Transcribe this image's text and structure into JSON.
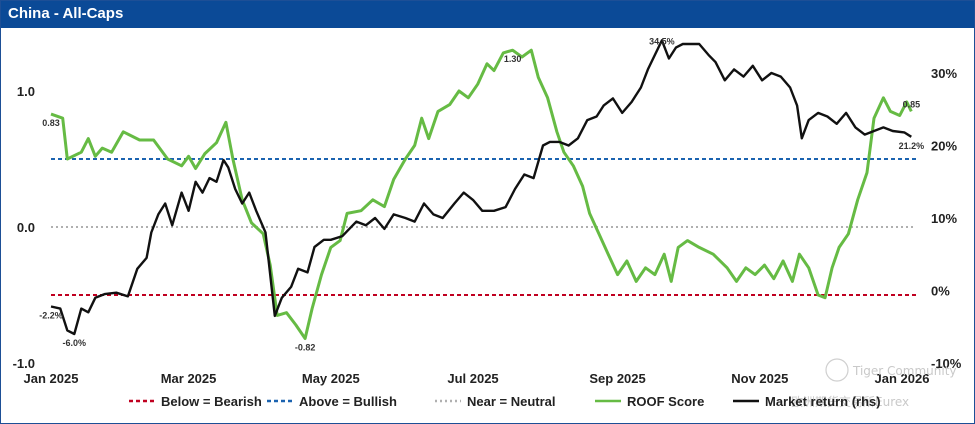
{
  "header": {
    "title": "China - All-Caps"
  },
  "watermark": {
    "brand": "Tiger Community",
    "exchange": "欧洲期货交易所Eurex"
  },
  "chart_data": {
    "type": "line",
    "title": "China - All-Caps",
    "x_range": [
      "2025-01-01",
      "2026-01-07"
    ],
    "x_ticks": [
      {
        "date": "2025-01-01",
        "label": "Jan 2025"
      },
      {
        "date": "2025-03-01",
        "label": "Mar 2025"
      },
      {
        "date": "2025-05-01",
        "label": "May 2025"
      },
      {
        "date": "2025-07-01",
        "label": "Jul 2025"
      },
      {
        "date": "2025-09-01",
        "label": "Sep 2025"
      },
      {
        "date": "2025-11-01",
        "label": "Nov 2025"
      },
      {
        "date": "2026-01-01",
        "label": "Jan 2026"
      }
    ],
    "y_left": {
      "range": [
        -1.0,
        1.0
      ],
      "ticks": [
        {
          "v": 1.0,
          "label": "1.0"
        },
        {
          "v": 0.0,
          "label": "0.0"
        },
        {
          "v": -1.0,
          "label": "-1.0"
        }
      ]
    },
    "y_right": {
      "range": [
        -10,
        30
      ],
      "ticks": [
        {
          "v": 30,
          "label": "30%"
        },
        {
          "v": 20,
          "label": "20%"
        },
        {
          "v": 10,
          "label": "10%"
        },
        {
          "v": 0,
          "label": "0%"
        },
        {
          "v": -10,
          "label": "-10%"
        }
      ]
    },
    "reference_lines": [
      {
        "name": "Below = Bearish",
        "value": -0.5,
        "color": "#c00020",
        "dash": "dash"
      },
      {
        "name": "Above = Bullish",
        "value": 0.5,
        "color": "#1b63b0",
        "dash": "dash"
      },
      {
        "name": "Near = Neutral",
        "value": 0.0,
        "color": "#b0b0b0",
        "dash": "dot"
      }
    ],
    "series": [
      {
        "name": "ROOF Score",
        "axis": "left",
        "color": "#66bb44",
        "points": [
          [
            "2025-01-01",
            0.83
          ],
          [
            "2025-01-06",
            0.8
          ],
          [
            "2025-01-08",
            0.5
          ],
          [
            "2025-01-14",
            0.55
          ],
          [
            "2025-01-17",
            0.65
          ],
          [
            "2025-01-20",
            0.52
          ],
          [
            "2025-01-23",
            0.58
          ],
          [
            "2025-01-27",
            0.55
          ],
          [
            "2025-02-01",
            0.7
          ],
          [
            "2025-02-08",
            0.64
          ],
          [
            "2025-02-14",
            0.64
          ],
          [
            "2025-02-20",
            0.5
          ],
          [
            "2025-02-26",
            0.45
          ],
          [
            "2025-03-01",
            0.52
          ],
          [
            "2025-03-04",
            0.43
          ],
          [
            "2025-03-08",
            0.54
          ],
          [
            "2025-03-13",
            0.62
          ],
          [
            "2025-03-17",
            0.77
          ],
          [
            "2025-03-20",
            0.5
          ],
          [
            "2025-03-24",
            0.2
          ],
          [
            "2025-03-28",
            0.03
          ],
          [
            "2025-04-02",
            -0.05
          ],
          [
            "2025-04-05",
            -0.28
          ],
          [
            "2025-04-08",
            -0.65
          ],
          [
            "2025-04-12",
            -0.63
          ],
          [
            "2025-04-16",
            -0.72
          ],
          [
            "2025-04-20",
            -0.82
          ],
          [
            "2025-04-23",
            -0.6
          ],
          [
            "2025-04-27",
            -0.35
          ],
          [
            "2025-05-01",
            -0.15
          ],
          [
            "2025-05-05",
            -0.1
          ],
          [
            "2025-05-08",
            0.1
          ],
          [
            "2025-05-14",
            0.12
          ],
          [
            "2025-05-19",
            0.2
          ],
          [
            "2025-05-24",
            0.15
          ],
          [
            "2025-05-28",
            0.35
          ],
          [
            "2025-06-02",
            0.5
          ],
          [
            "2025-06-06",
            0.6
          ],
          [
            "2025-06-09",
            0.8
          ],
          [
            "2025-06-12",
            0.65
          ],
          [
            "2025-06-16",
            0.85
          ],
          [
            "2025-06-21",
            0.9
          ],
          [
            "2025-06-25",
            1.0
          ],
          [
            "2025-06-29",
            0.95
          ],
          [
            "2025-07-03",
            1.05
          ],
          [
            "2025-07-07",
            1.2
          ],
          [
            "2025-07-10",
            1.15
          ],
          [
            "2025-07-14",
            1.28
          ],
          [
            "2025-07-18",
            1.3
          ],
          [
            "2025-07-22",
            1.25
          ],
          [
            "2025-07-26",
            1.3
          ],
          [
            "2025-07-29",
            1.1
          ],
          [
            "2025-08-02",
            0.95
          ],
          [
            "2025-08-06",
            0.7
          ],
          [
            "2025-08-09",
            0.55
          ],
          [
            "2025-08-13",
            0.45
          ],
          [
            "2025-08-17",
            0.3
          ],
          [
            "2025-08-20",
            0.1
          ],
          [
            "2025-08-24",
            -0.05
          ],
          [
            "2025-08-28",
            -0.2
          ],
          [
            "2025-09-01",
            -0.35
          ],
          [
            "2025-09-05",
            -0.25
          ],
          [
            "2025-09-09",
            -0.4
          ],
          [
            "2025-09-13",
            -0.3
          ],
          [
            "2025-09-17",
            -0.35
          ],
          [
            "2025-09-21",
            -0.2
          ],
          [
            "2025-09-24",
            -0.4
          ],
          [
            "2025-09-27",
            -0.15
          ],
          [
            "2025-10-01",
            -0.1
          ],
          [
            "2025-10-06",
            -0.15
          ],
          [
            "2025-10-12",
            -0.2
          ],
          [
            "2025-10-18",
            -0.3
          ],
          [
            "2025-10-22",
            -0.4
          ],
          [
            "2025-10-26",
            -0.3
          ],
          [
            "2025-10-30",
            -0.35
          ],
          [
            "2025-11-03",
            -0.28
          ],
          [
            "2025-11-07",
            -0.38
          ],
          [
            "2025-11-11",
            -0.25
          ],
          [
            "2025-11-15",
            -0.4
          ],
          [
            "2025-11-18",
            -0.2
          ],
          [
            "2025-11-22",
            -0.3
          ],
          [
            "2025-11-26",
            -0.5
          ],
          [
            "2025-11-29",
            -0.52
          ],
          [
            "2025-12-02",
            -0.3
          ],
          [
            "2025-12-05",
            -0.15
          ],
          [
            "2025-12-09",
            -0.05
          ],
          [
            "2025-12-13",
            0.2
          ],
          [
            "2025-12-17",
            0.4
          ],
          [
            "2025-12-20",
            0.8
          ],
          [
            "2025-12-24",
            0.95
          ],
          [
            "2025-12-27",
            0.85
          ],
          [
            "2025-12-31",
            0.82
          ],
          [
            "2026-01-03",
            0.92
          ],
          [
            "2026-01-05",
            0.85
          ]
        ]
      },
      {
        "name": "Market return (rhs)",
        "axis": "right",
        "color": "#111111",
        "points": [
          [
            "2025-01-01",
            -2.2
          ],
          [
            "2025-01-05",
            -2.5
          ],
          [
            "2025-01-08",
            -5.5
          ],
          [
            "2025-01-11",
            -6.0
          ],
          [
            "2025-01-14",
            -2.5
          ],
          [
            "2025-01-17",
            -3.0
          ],
          [
            "2025-01-20",
            -1.0
          ],
          [
            "2025-01-24",
            -0.5
          ],
          [
            "2025-01-29",
            -0.3
          ],
          [
            "2025-02-03",
            -0.8
          ],
          [
            "2025-02-07",
            3.0
          ],
          [
            "2025-02-11",
            4.5
          ],
          [
            "2025-02-13",
            8.0
          ],
          [
            "2025-02-16",
            10.5
          ],
          [
            "2025-02-19",
            12.0
          ],
          [
            "2025-02-22",
            9.0
          ],
          [
            "2025-02-26",
            13.5
          ],
          [
            "2025-03-01",
            11.0
          ],
          [
            "2025-03-04",
            15.0
          ],
          [
            "2025-03-07",
            13.5
          ],
          [
            "2025-03-10",
            15.5
          ],
          [
            "2025-03-13",
            15.0
          ],
          [
            "2025-03-16",
            18.0
          ],
          [
            "2025-03-18",
            17.0
          ],
          [
            "2025-03-21",
            14.0
          ],
          [
            "2025-03-24",
            12.0
          ],
          [
            "2025-03-27",
            13.5
          ],
          [
            "2025-03-30",
            11.0
          ],
          [
            "2025-04-03",
            8.0
          ],
          [
            "2025-04-07",
            -3.5
          ],
          [
            "2025-04-10",
            -1.0
          ],
          [
            "2025-04-14",
            0.5
          ],
          [
            "2025-04-17",
            3.0
          ],
          [
            "2025-04-21",
            2.5
          ],
          [
            "2025-04-24",
            6.0
          ],
          [
            "2025-04-28",
            7.0
          ],
          [
            "2025-05-01",
            7.0
          ],
          [
            "2025-05-06",
            7.5
          ],
          [
            "2025-05-12",
            9.5
          ],
          [
            "2025-05-16",
            9.0
          ],
          [
            "2025-05-20",
            10.0
          ],
          [
            "2025-05-24",
            8.5
          ],
          [
            "2025-05-28",
            10.5
          ],
          [
            "2025-06-02",
            10.0
          ],
          [
            "2025-06-06",
            9.5
          ],
          [
            "2025-06-10",
            12.0
          ],
          [
            "2025-06-14",
            10.5
          ],
          [
            "2025-06-18",
            10.0
          ],
          [
            "2025-06-23",
            12.0
          ],
          [
            "2025-06-27",
            13.5
          ],
          [
            "2025-07-01",
            12.5
          ],
          [
            "2025-07-05",
            11.0
          ],
          [
            "2025-07-10",
            11.0
          ],
          [
            "2025-07-15",
            11.5
          ],
          [
            "2025-07-19",
            14.0
          ],
          [
            "2025-07-23",
            16.0
          ],
          [
            "2025-07-27",
            15.5
          ],
          [
            "2025-07-31",
            20.0
          ],
          [
            "2025-08-03",
            20.5
          ],
          [
            "2025-08-07",
            20.5
          ],
          [
            "2025-08-11",
            20.0
          ],
          [
            "2025-08-15",
            21.0
          ],
          [
            "2025-08-19",
            23.5
          ],
          [
            "2025-08-23",
            24.0
          ],
          [
            "2025-08-26",
            25.5
          ],
          [
            "2025-08-30",
            26.5
          ],
          [
            "2025-09-03",
            24.5
          ],
          [
            "2025-09-07",
            26.0
          ],
          [
            "2025-09-11",
            28.0
          ],
          [
            "2025-09-14",
            30.5
          ],
          [
            "2025-09-17",
            32.5
          ],
          [
            "2025-09-20",
            34.5
          ],
          [
            "2025-09-23",
            32.0
          ],
          [
            "2025-09-26",
            33.5
          ],
          [
            "2025-09-29",
            34.0
          ],
          [
            "2025-10-02",
            34.0
          ],
          [
            "2025-10-06",
            34.0
          ],
          [
            "2025-10-10",
            32.5
          ],
          [
            "2025-10-13",
            31.5
          ],
          [
            "2025-10-17",
            29.0
          ],
          [
            "2025-10-21",
            30.5
          ],
          [
            "2025-10-25",
            29.5
          ],
          [
            "2025-10-29",
            31.0
          ],
          [
            "2025-11-02",
            29.0
          ],
          [
            "2025-11-06",
            30.0
          ],
          [
            "2025-11-10",
            29.5
          ],
          [
            "2025-11-14",
            28.0
          ],
          [
            "2025-11-17",
            25.5
          ],
          [
            "2025-11-19",
            21.0
          ],
          [
            "2025-11-22",
            23.5
          ],
          [
            "2025-11-26",
            24.5
          ],
          [
            "2025-11-30",
            24.0
          ],
          [
            "2025-12-04",
            23.0
          ],
          [
            "2025-12-08",
            24.5
          ],
          [
            "2025-12-12",
            22.5
          ],
          [
            "2025-12-16",
            21.5
          ],
          [
            "2025-12-20",
            22.0
          ],
          [
            "2025-12-24",
            22.5
          ],
          [
            "2025-12-28",
            22.0
          ],
          [
            "2026-01-02",
            21.8
          ],
          [
            "2026-01-05",
            21.2
          ]
        ]
      }
    ],
    "annotations": [
      {
        "date": "2025-01-01",
        "axis": "left",
        "value": 0.83,
        "label": "0.83",
        "anchor": "below"
      },
      {
        "date": "2025-07-18",
        "axis": "left",
        "value": 1.3,
        "label": "1.30",
        "anchor": "below"
      },
      {
        "date": "2025-04-20",
        "axis": "left",
        "value": -0.82,
        "label": "-0.82",
        "anchor": "below"
      },
      {
        "date": "2026-01-05",
        "axis": "left",
        "value": 0.85,
        "label": "0.85",
        "anchor": "above"
      },
      {
        "date": "2025-01-01",
        "axis": "right",
        "value": -2.2,
        "label": "-2.2%",
        "anchor": "below"
      },
      {
        "date": "2025-01-11",
        "axis": "right",
        "value": -6.0,
        "label": "-6.0%",
        "anchor": "below"
      },
      {
        "date": "2025-09-20",
        "axis": "right",
        "value": 34.5,
        "label": "34.5%",
        "anchor": "at"
      },
      {
        "date": "2026-01-05",
        "axis": "right",
        "value": 21.2,
        "label": "21.2%",
        "anchor": "below"
      }
    ],
    "legend": {
      "position": "bottom",
      "entries": [
        {
          "label": "Below = Bearish",
          "color": "#c00020",
          "dash": "dash"
        },
        {
          "label": "Above = Bullish",
          "color": "#1b63b0",
          "dash": "dash"
        },
        {
          "label": "Near = Neutral",
          "color": "#b0b0b0",
          "dash": "dot"
        },
        {
          "label": "ROOF Score",
          "color": "#66bb44",
          "dash": "solid"
        },
        {
          "label": "Market return (rhs)",
          "color": "#111111",
          "dash": "solid"
        }
      ]
    },
    "grid": false
  }
}
